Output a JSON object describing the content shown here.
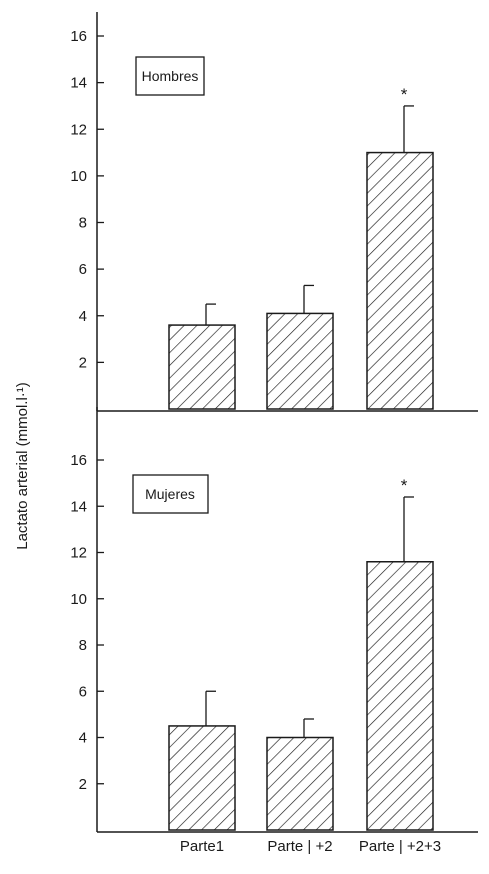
{
  "ylabel": "Lactato arterial (mmol.l·¹)",
  "categories": [
    "Parte1",
    "Parte | +2",
    "Parte | +2+3"
  ],
  "chart_data": [
    {
      "type": "bar",
      "panel": "top",
      "legend": "Hombres",
      "categories": [
        "Parte1",
        "Parte | +2",
        "Parte | +2+3"
      ],
      "values": [
        3.6,
        4.1,
        11.0
      ],
      "errors": [
        0.9,
        1.2,
        2.0
      ],
      "significance": [
        "",
        "",
        "*"
      ],
      "ylim": [
        0,
        16
      ],
      "yticks": [
        2,
        4,
        6,
        8,
        10,
        12,
        14,
        16
      ],
      "bar_pattern": "diagonal-hatch"
    },
    {
      "type": "bar",
      "panel": "bottom",
      "legend": "Mujeres",
      "categories": [
        "Parte1",
        "Parte | +2",
        "Parte | +2+3"
      ],
      "values": [
        4.5,
        4.0,
        11.6
      ],
      "errors": [
        1.5,
        0.8,
        2.8
      ],
      "significance": [
        "",
        "",
        "*"
      ],
      "ylim": [
        0,
        16
      ],
      "yticks": [
        2,
        4,
        6,
        8,
        10,
        12,
        14,
        16
      ],
      "bar_pattern": "diagonal-hatch"
    }
  ]
}
